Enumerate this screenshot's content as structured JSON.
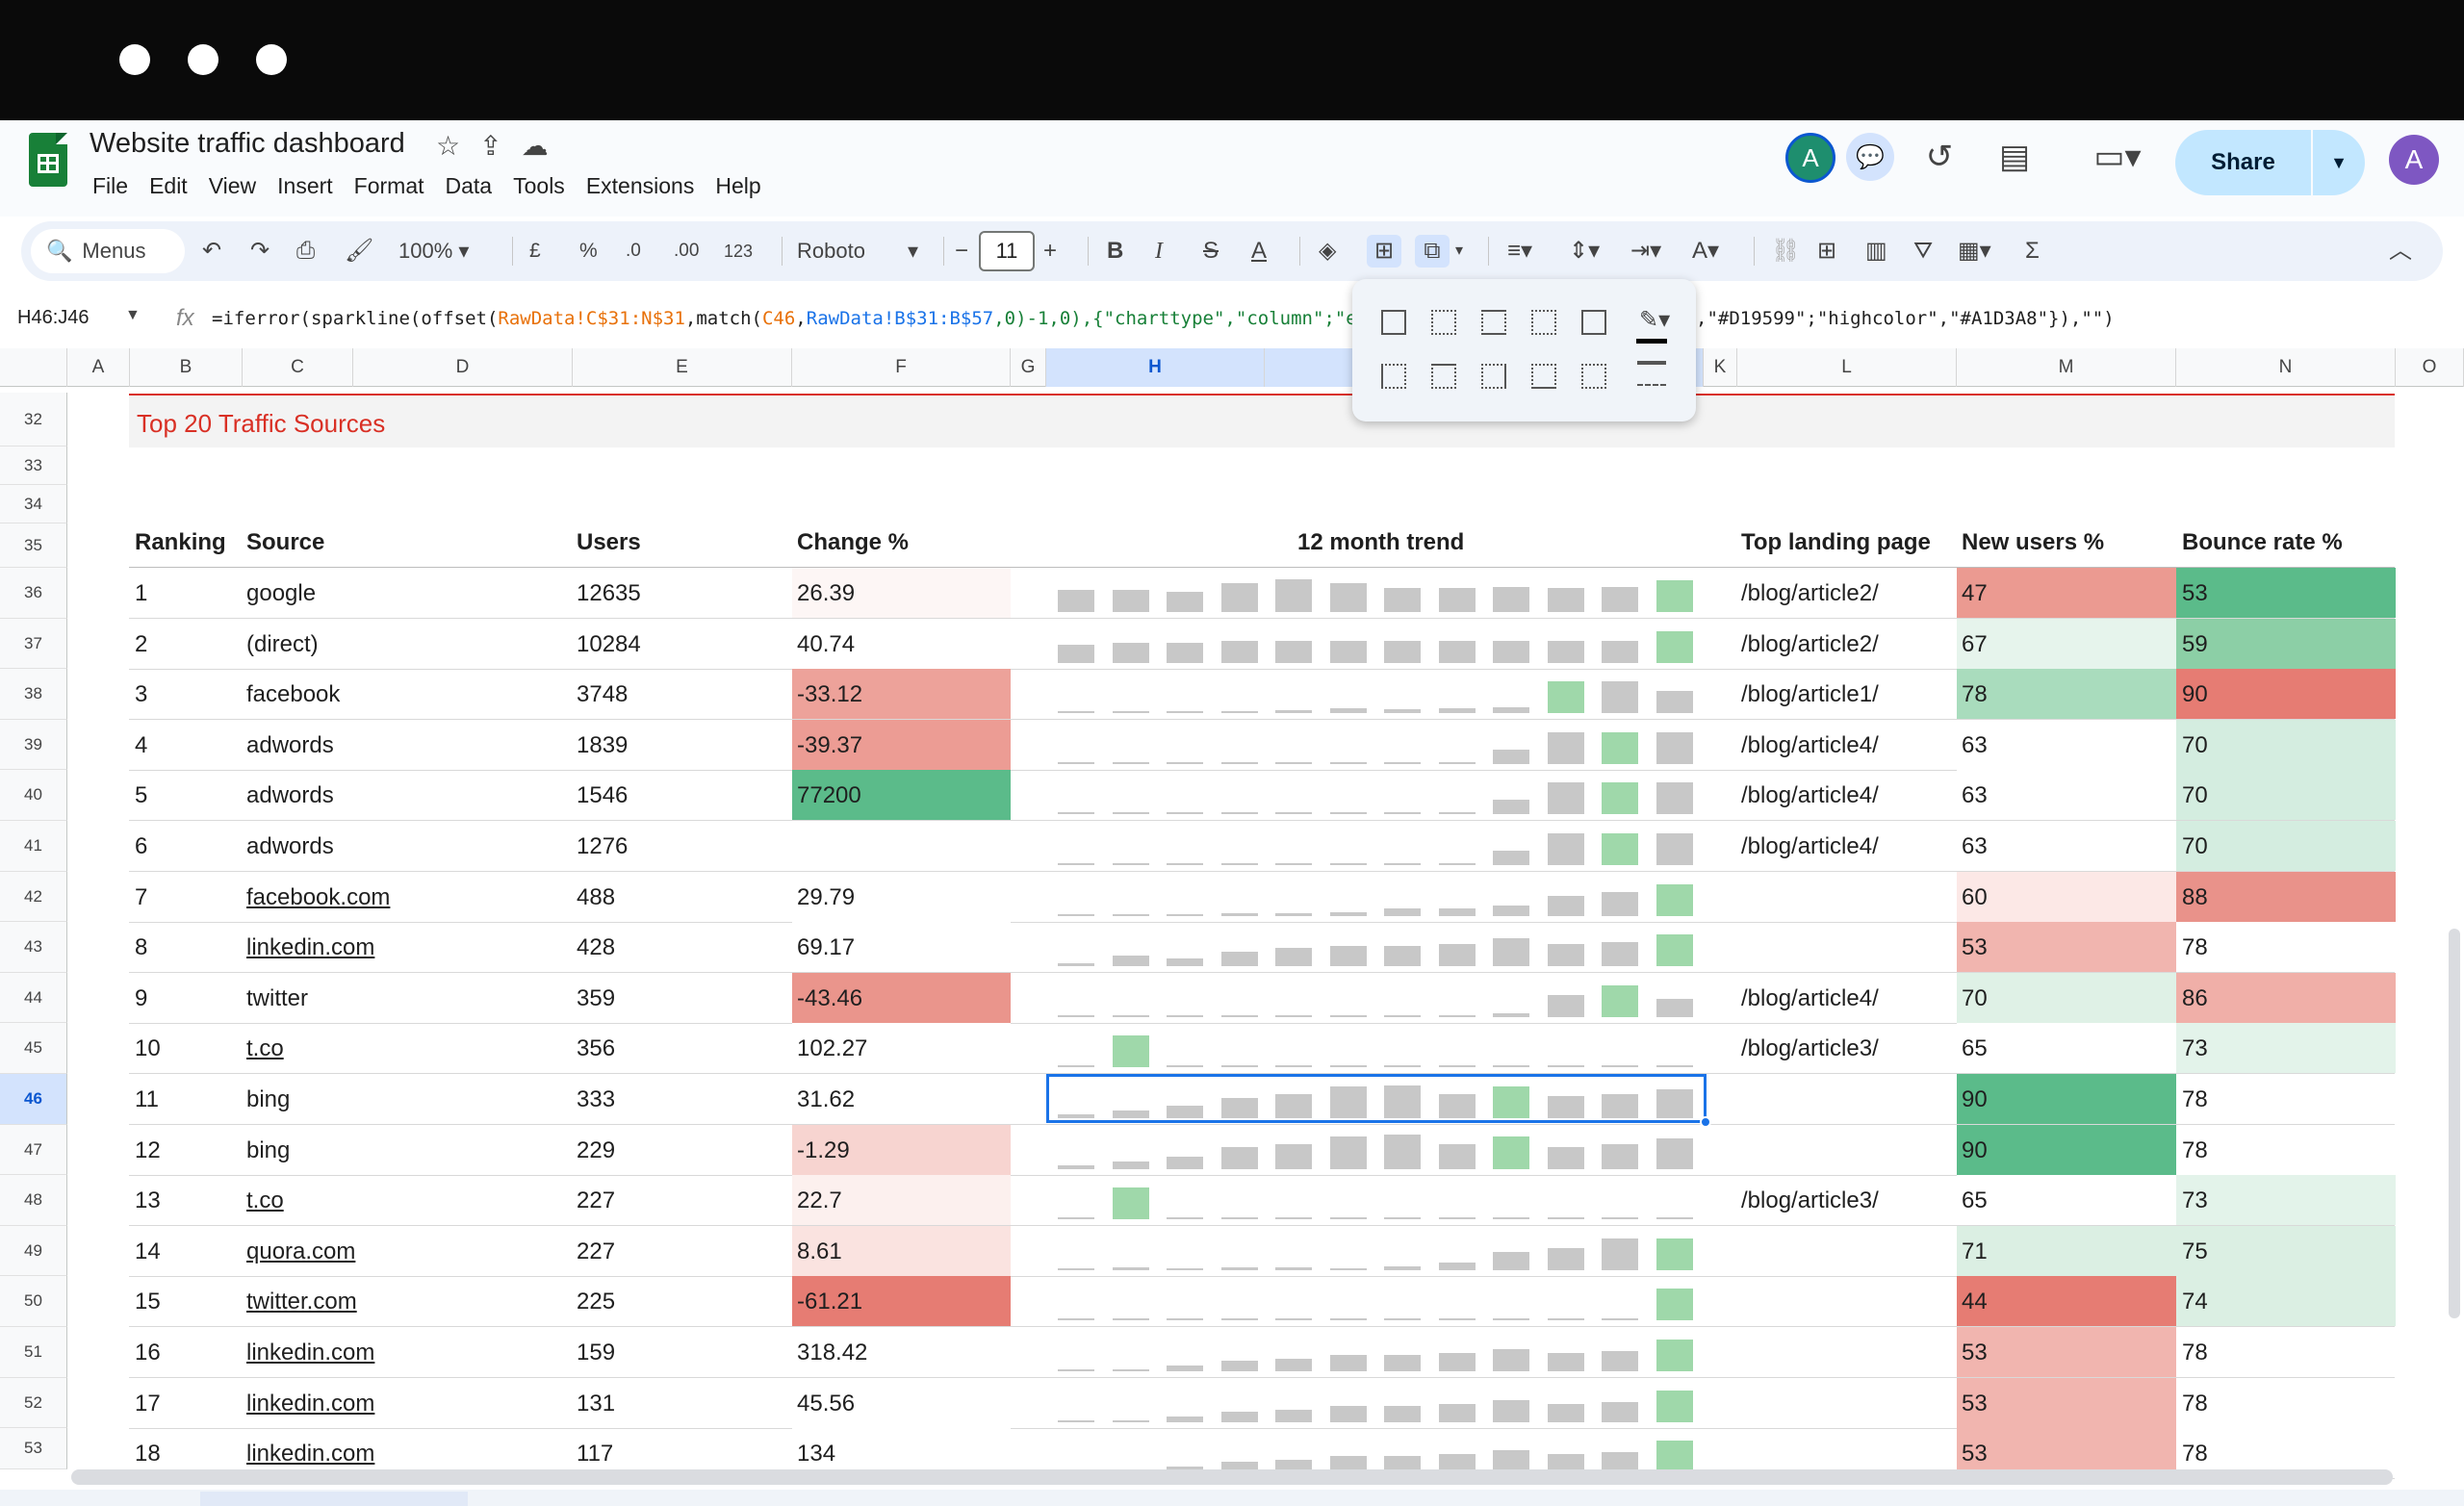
{
  "app": {
    "title": "Website traffic dashboard"
  },
  "menus": [
    "File",
    "Edit",
    "View",
    "Insert",
    "Format",
    "Data",
    "Tools",
    "Extensions",
    "Help"
  ],
  "header": {
    "avatar_letter": "A",
    "share_label": "Share",
    "user_letter": "A"
  },
  "toolbar": {
    "search_label": "Menus",
    "zoom": "100%",
    "currency": "£",
    "percent": "%",
    "dec_decrease": ".0",
    "dec_increase": ".00",
    "number_format": "123",
    "font": "Roboto",
    "font_size": "11",
    "bold": "B",
    "italic": "I",
    "strike": "S",
    "text_color": "A"
  },
  "formula_bar": {
    "name_box": "H46:J46",
    "fx": "fx",
    "formula_parts": [
      {
        "t": "=iferror(sparkline(offset(",
        "c": ""
      },
      {
        "t": "RawData!C$31:N$31",
        "c": "o"
      },
      {
        "t": ",match(",
        "c": ""
      },
      {
        "t": "C46",
        "c": "o"
      },
      {
        "t": ",",
        "c": ""
      },
      {
        "t": "RawData!B$31:B$57",
        "c": "b"
      },
      {
        "t": ",0)-1,0),{\"charttype\",\"column\";\"em",
        "c": "g"
      }
    ],
    "formula_tail": ",\"#D19599\";\"highcolor\",\"#A1D3A8\"}),\"\")"
  },
  "columns": [
    "A",
    "B",
    "C",
    "D",
    "E",
    "F",
    "G",
    "H",
    "",
    "",
    "K",
    "L",
    "M",
    "N",
    "O"
  ],
  "row_numbers": [
    "32",
    "33",
    "34",
    "35",
    "36",
    "37",
    "38",
    "39",
    "40",
    "41",
    "42",
    "43",
    "44",
    "45",
    "46",
    "47",
    "48",
    "49",
    "50",
    "51",
    "52",
    "53"
  ],
  "section_title": "Top 20 Traffic Sources",
  "table": {
    "headers": {
      "ranking": "Ranking",
      "source": "Source",
      "users": "Users",
      "change": "Change %",
      "trend": "12 month trend",
      "landing": "Top landing page",
      "new_users": "New users %",
      "bounce": "Bounce rate %"
    },
    "rows": [
      {
        "rank": "1",
        "source": "google",
        "u": false,
        "users": "12635",
        "change": "26.39",
        "landing": "/blog/article2/",
        "new": "47",
        "bounce": "53",
        "cbg": "#fdf6f5",
        "nbg": "#eb9a91",
        "bbg": "#5bbb8a",
        "trend": [
          0.55,
          0.55,
          0.5,
          0.72,
          0.8,
          0.72,
          0.6,
          0.6,
          0.62,
          0.6,
          0.62,
          0.78
        ],
        "hi": 11
      },
      {
        "rank": "2",
        "source": "(direct)",
        "u": false,
        "users": "10284",
        "change": "40.74",
        "landing": "/blog/article2/",
        "new": "67",
        "bounce": "59",
        "cbg": "#ffffff",
        "nbg": "#e6f4ec",
        "bbg": "#8ccfa6",
        "trend": [
          0.45,
          0.5,
          0.5,
          0.55,
          0.55,
          0.55,
          0.55,
          0.55,
          0.55,
          0.55,
          0.55,
          0.78
        ],
        "hi": 11
      },
      {
        "rank": "3",
        "source": "facebook",
        "u": false,
        "users": "3748",
        "change": "-33.12",
        "landing": "/blog/article1/",
        "new": "78",
        "bounce": "90",
        "cbg": "#eda29a",
        "nbg": "#a9dcbd",
        "bbg": "#e67c73",
        "trend": [
          0,
          0,
          0,
          0.05,
          0.08,
          0.12,
          0.1,
          0.12,
          0.15,
          0.78,
          0.78,
          0.55
        ],
        "hi": 9
      },
      {
        "rank": "4",
        "source": "adwords",
        "u": false,
        "users": "1839",
        "change": "-39.37",
        "landing": "/blog/article4/",
        "new": "63",
        "bounce": "70",
        "cbg": "#ec9c94",
        "nbg": "#ffffff",
        "bbg": "#d4ede0",
        "trend": [
          0,
          0,
          0,
          0,
          0,
          0,
          0,
          0,
          0.35,
          0.78,
          0.78,
          0.78
        ],
        "hi": 10
      },
      {
        "rank": "5",
        "source": "adwords",
        "u": false,
        "users": "1546",
        "change": "77200",
        "landing": "/blog/article4/",
        "new": "63",
        "bounce": "70",
        "cbg": "#5bbb8a",
        "nbg": "#ffffff",
        "bbg": "#d4ede0",
        "trend": [
          0,
          0,
          0,
          0,
          0,
          0,
          0,
          0,
          0.35,
          0.78,
          0.78,
          0.78
        ],
        "hi": 10
      },
      {
        "rank": "6",
        "source": "adwords",
        "u": false,
        "users": "1276",
        "change": "",
        "landing": "/blog/article4/",
        "new": "63",
        "bounce": "70",
        "cbg": "#ffffff",
        "nbg": "#ffffff",
        "bbg": "#d4ede0",
        "trend": [
          0,
          0,
          0,
          0,
          0,
          0,
          0,
          0,
          0.35,
          0.78,
          0.78,
          0.78
        ],
        "hi": 10
      },
      {
        "rank": "7",
        "source": "facebook.com",
        "u": true,
        "users": "488",
        "change": "29.79",
        "landing": "",
        "new": "60",
        "bounce": "88",
        "cbg": "#ffffff",
        "nbg": "#fce8e6",
        "bbg": "#e9928a",
        "trend": [
          0,
          0.05,
          0.05,
          0.08,
          0.08,
          0.1,
          0.18,
          0.2,
          0.25,
          0.5,
          0.6,
          0.78
        ],
        "hi": 11
      },
      {
        "rank": "8",
        "source": "linkedin.com",
        "u": true,
        "users": "428",
        "change": "69.17",
        "landing": "",
        "new": "53",
        "bounce": "78",
        "cbg": "#ffffff",
        "nbg": "#f1b5af",
        "bbg": "#ffffff",
        "trend": [
          0.08,
          0.25,
          0.2,
          0.35,
          0.45,
          0.5,
          0.5,
          0.55,
          0.7,
          0.55,
          0.6,
          0.78
        ],
        "hi": 11
      },
      {
        "rank": "9",
        "source": "twitter",
        "u": false,
        "users": "359",
        "change": "-43.46",
        "landing": "/blog/article4/",
        "new": "70",
        "bounce": "86",
        "cbg": "#ea958c",
        "nbg": "#dff1e6",
        "bbg": "#f0afa8",
        "trend": [
          0,
          0,
          0,
          0,
          0,
          0,
          0,
          0,
          0.1,
          0.55,
          0.78,
          0.45
        ],
        "hi": 10
      },
      {
        "rank": "10",
        "source": "t.co",
        "u": true,
        "users": "356",
        "change": "102.27",
        "landing": "/blog/article3/",
        "new": "65",
        "bounce": "73",
        "cbg": "#ffffff",
        "nbg": "#ffffff",
        "bbg": "#e3f3ea",
        "trend": [
          0,
          0.78,
          0,
          0,
          0,
          0,
          0,
          0,
          0,
          0,
          0,
          0
        ],
        "hi": 1
      },
      {
        "rank": "11",
        "source": "bing",
        "u": false,
        "users": "333",
        "change": "31.62",
        "landing": "",
        "new": "90",
        "bounce": "78",
        "cbg": "#ffffff",
        "nbg": "#5bbb8a",
        "bbg": "#ffffff",
        "trend": [
          0.1,
          0.2,
          0.3,
          0.5,
          0.6,
          0.78,
          0.82,
          0.6,
          0.78,
          0.55,
          0.6,
          0.72
        ],
        "hi": 8
      },
      {
        "rank": "12",
        "source": "bing",
        "u": false,
        "users": "229",
        "change": "-1.29",
        "landing": "",
        "new": "90",
        "bounce": "78",
        "cbg": "#f7d4d0",
        "nbg": "#5bbb8a",
        "bbg": "#ffffff",
        "trend": [
          0.1,
          0.2,
          0.3,
          0.55,
          0.62,
          0.8,
          0.85,
          0.62,
          0.82,
          0.55,
          0.62,
          0.75
        ],
        "hi": 8
      },
      {
        "rank": "13",
        "source": "t.co",
        "u": true,
        "users": "227",
        "change": "22.7",
        "landing": "/blog/article3/",
        "new": "65",
        "bounce": "73",
        "cbg": "#fcf0ee",
        "nbg": "#ffffff",
        "bbg": "#e3f3ea",
        "trend": [
          0,
          0.78,
          0,
          0,
          0,
          0,
          0,
          0,
          0,
          0,
          0,
          0
        ],
        "hi": 1
      },
      {
        "rank": "14",
        "source": "quora.com",
        "u": true,
        "users": "227",
        "change": "8.61",
        "landing": "",
        "new": "71",
        "bounce": "75",
        "cbg": "#fae3e0",
        "nbg": "#dbefe3",
        "bbg": "#dbefe3",
        "trend": [
          0.05,
          0.08,
          0.05,
          0.08,
          0.08,
          0.05,
          0.1,
          0.2,
          0.45,
          0.55,
          0.78,
          0.78
        ],
        "hi": 11
      },
      {
        "rank": "15",
        "source": "twitter.com",
        "u": true,
        "users": "225",
        "change": "-61.21",
        "landing": "",
        "new": "44",
        "bounce": "74",
        "cbg": "#e67c73",
        "nbg": "#e67c73",
        "bbg": "#dbefe3",
        "trend": [
          0,
          0,
          0,
          0,
          0,
          0,
          0,
          0,
          0,
          0,
          0,
          0.78
        ],
        "hi": 11
      },
      {
        "rank": "16",
        "source": "linkedin.com",
        "u": true,
        "users": "159",
        "change": "318.42",
        "landing": "",
        "new": "53",
        "bounce": "78",
        "cbg": "#ffffff",
        "nbg": "#f1b5af",
        "bbg": "#ffffff",
        "trend": [
          0.05,
          0.05,
          0.15,
          0.25,
          0.3,
          0.4,
          0.4,
          0.45,
          0.55,
          0.45,
          0.5,
          0.78
        ],
        "hi": 11
      },
      {
        "rank": "17",
        "source": "linkedin.com",
        "u": true,
        "users": "131",
        "change": "45.56",
        "landing": "",
        "new": "53",
        "bounce": "78",
        "cbg": "#ffffff",
        "nbg": "#f1b5af",
        "bbg": "#ffffff",
        "trend": [
          0.05,
          0.05,
          0.15,
          0.25,
          0.3,
          0.4,
          0.4,
          0.45,
          0.55,
          0.45,
          0.5,
          0.78
        ],
        "hi": 11
      },
      {
        "rank": "18",
        "source": "linkedin.com",
        "u": true,
        "users": "117",
        "change": "134",
        "landing": "",
        "new": "53",
        "bounce": "78",
        "cbg": "#ffffff",
        "nbg": "#f1b5af",
        "bbg": "#ffffff",
        "trend": [
          0.05,
          0.05,
          0.15,
          0.25,
          0.3,
          0.4,
          0.4,
          0.45,
          0.55,
          0.45,
          0.5,
          0.78
        ],
        "hi": 11
      }
    ]
  },
  "selection": {
    "row": "46"
  }
}
